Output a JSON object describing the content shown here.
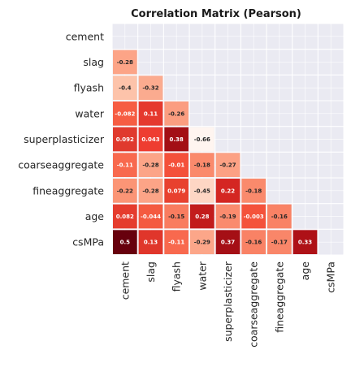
{
  "chart_data": {
    "type": "heatmap",
    "title": "Correlation Matrix (Pearson)",
    "variables": [
      "cement",
      "slag",
      "flyash",
      "water",
      "superplasticizer",
      "coarseaggregate",
      "fineaggregate",
      "age",
      "csMPa"
    ],
    "mask": "upper-triangle-including-diagonal",
    "grid": true,
    "background_color": "#EAEAF2",
    "colormap": "Reds",
    "cells": [
      {
        "row": "slag",
        "col": "cement",
        "value": -0.28,
        "label": "-0.28",
        "color": "#FCA487"
      },
      {
        "row": "flyash",
        "col": "cement",
        "value": -0.4,
        "label": "-0.4",
        "color": "#FDC3AA"
      },
      {
        "row": "flyash",
        "col": "slag",
        "value": -0.32,
        "label": "-0.32",
        "color": "#FBAB8F"
      },
      {
        "row": "water",
        "col": "cement",
        "value": -0.082,
        "label": "-0.082",
        "color": "#F65D43"
      },
      {
        "row": "water",
        "col": "slag",
        "value": 0.11,
        "label": "0.11",
        "color": "#E5392E"
      },
      {
        "row": "water",
        "col": "flyash",
        "value": -0.26,
        "label": "-0.26",
        "color": "#FB9D80"
      },
      {
        "row": "superplasticizer",
        "col": "cement",
        "value": 0.092,
        "label": "0.092",
        "color": "#E03A2E"
      },
      {
        "row": "superplasticizer",
        "col": "slag",
        "value": 0.043,
        "label": "0.043",
        "color": "#EE3D31"
      },
      {
        "row": "superplasticizer",
        "col": "flyash",
        "value": 0.38,
        "label": "0.38",
        "color": "#A30F15"
      },
      {
        "row": "superplasticizer",
        "col": "water",
        "value": -0.66,
        "label": "-0.66",
        "color": "#FFF5F0"
      },
      {
        "row": "coarseaggregate",
        "col": "cement",
        "value": -0.11,
        "label": "-0.11",
        "color": "#F8694E"
      },
      {
        "row": "coarseaggregate",
        "col": "slag",
        "value": -0.28,
        "label": "-0.28",
        "color": "#FCA487"
      },
      {
        "row": "coarseaggregate",
        "col": "flyash",
        "value": -0.01,
        "label": "-0.01",
        "color": "#F4503A"
      },
      {
        "row": "coarseaggregate",
        "col": "water",
        "value": -0.18,
        "label": "-0.18",
        "color": "#FA8A6C"
      },
      {
        "row": "coarseaggregate",
        "col": "superplasticizer",
        "value": -0.27,
        "label": "-0.27",
        "color": "#FCA184"
      },
      {
        "row": "fineaggregate",
        "col": "cement",
        "value": -0.22,
        "label": "-0.22",
        "color": "#FB9576"
      },
      {
        "row": "fineaggregate",
        "col": "slag",
        "value": -0.28,
        "label": "-0.28",
        "color": "#FCA487"
      },
      {
        "row": "fineaggregate",
        "col": "flyash",
        "value": 0.079,
        "label": "0.079",
        "color": "#E8412F"
      },
      {
        "row": "fineaggregate",
        "col": "water",
        "value": -0.45,
        "label": "-0.45",
        "color": "#FED6C4"
      },
      {
        "row": "fineaggregate",
        "col": "superplasticizer",
        "value": 0.22,
        "label": "0.22",
        "color": "#D42622"
      },
      {
        "row": "fineaggregate",
        "col": "coarseaggregate",
        "value": -0.18,
        "label": "-0.18",
        "color": "#FA8A6C"
      },
      {
        "row": "age",
        "col": "cement",
        "value": 0.082,
        "label": "0.082",
        "color": "#E53C2E"
      },
      {
        "row": "age",
        "col": "slag",
        "value": -0.044,
        "label": "-0.044",
        "color": "#F45A40"
      },
      {
        "row": "age",
        "col": "flyash",
        "value": -0.15,
        "label": "-0.15",
        "color": "#F97C5F"
      },
      {
        "row": "age",
        "col": "water",
        "value": 0.28,
        "label": "0.28",
        "color": "#C21C1C"
      },
      {
        "row": "age",
        "col": "superplasticizer",
        "value": -0.19,
        "label": "-0.19",
        "color": "#FA8B6E"
      },
      {
        "row": "age",
        "col": "coarseaggregate",
        "value": -0.003,
        "label": "-0.003",
        "color": "#F4523B"
      },
      {
        "row": "age",
        "col": "fineaggregate",
        "value": -0.16,
        "label": "-0.16",
        "color": "#F98265"
      },
      {
        "row": "csMPa",
        "col": "cement",
        "value": 0.5,
        "label": "0.5",
        "color": "#67000D"
      },
      {
        "row": "csMPa",
        "col": "slag",
        "value": 0.13,
        "label": "0.13",
        "color": "#E0362B"
      },
      {
        "row": "csMPa",
        "col": "flyash",
        "value": -0.11,
        "label": "-0.11",
        "color": "#F8694E"
      },
      {
        "row": "csMPa",
        "col": "water",
        "value": -0.29,
        "label": "-0.29",
        "color": "#FCA689"
      },
      {
        "row": "csMPa",
        "col": "superplasticizer",
        "value": 0.37,
        "label": "0.37",
        "color": "#A50F15"
      },
      {
        "row": "csMPa",
        "col": "coarseaggregate",
        "value": -0.16,
        "label": "-0.16",
        "color": "#F98265"
      },
      {
        "row": "csMPa",
        "col": "fineaggregate",
        "value": -0.17,
        "label": "-0.17",
        "color": "#F98669"
      },
      {
        "row": "csMPa",
        "col": "age",
        "value": 0.33,
        "label": "0.33",
        "color": "#AE1117"
      }
    ]
  }
}
